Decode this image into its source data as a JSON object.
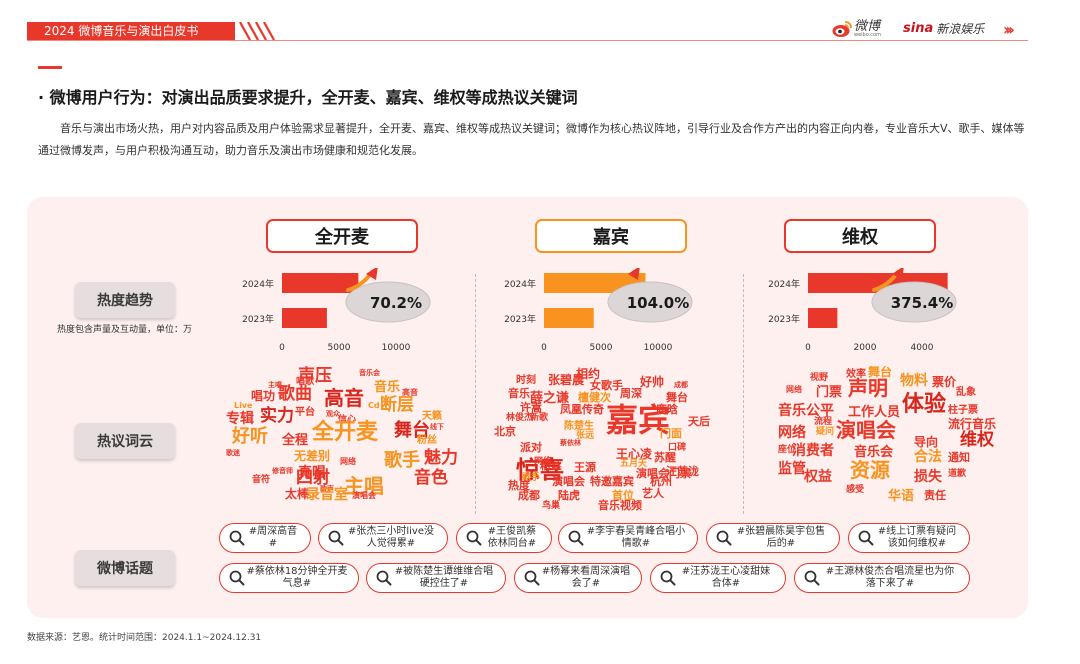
{
  "header": {
    "report_title": "2024 微博音乐与演出白皮书",
    "weibo_logo_text": "微博",
    "weibo_logo_sub": "weibo.com",
    "sina_logo_mark": "sina",
    "sina_logo_text": "新浪娱乐",
    "nav_chevrons": "›››"
  },
  "section": {
    "title": "· 微博用户行为：对演出品质要求提升，全开麦、嘉宾、维权等成热议关键词",
    "paragraph": "音乐与演出市场火热，用户对内容品质及用户体验需求显著提升，全开麦、嘉宾、维权等成热议关键词；微博作为核心热议阵地，引导行业及合作方产出的内容正向内卷，专业音乐大V、歌手、媒体等通过微博发声，与用户积极沟通互动，助力音乐及演出市场健康和规范化发展。"
  },
  "row_labels": {
    "trend": "热度趋势",
    "trend_note": "热度包含声量及互动量，单位：万",
    "words": "热议词云",
    "topics": "微博话题"
  },
  "keywords": [
    {
      "name": "全开麦",
      "growth": "70.2%"
    },
    {
      "name": "嘉宾",
      "growth": "104.0%"
    },
    {
      "name": "维权",
      "growth": "375.4%"
    }
  ],
  "colors": {
    "red": "#e8382b",
    "orange": "#f7931e",
    "panel": "#fdf0ee",
    "label_bg": "#e6dede"
  },
  "chart_data": [
    {
      "type": "bar",
      "title": "全开麦",
      "orientation": "horizontal",
      "categories": [
        "2024年",
        "2023年"
      ],
      "values": [
        6700,
        3940
      ],
      "xlim": [
        0,
        10000
      ],
      "xticks": [
        0,
        5000,
        10000
      ],
      "annotation": "70.2%"
    },
    {
      "type": "bar",
      "title": "嘉宾",
      "orientation": "horizontal",
      "categories": [
        "2024年",
        "2023年"
      ],
      "values": [
        8900,
        4360
      ],
      "xlim": [
        0,
        10000
      ],
      "xticks": [
        0,
        5000,
        10000
      ],
      "annotation": "104.0%"
    },
    {
      "type": "bar",
      "title": "维权",
      "orientation": "horizontal",
      "categories": [
        "2024年",
        "2023年"
      ],
      "values": [
        4900,
        1030
      ],
      "xlim": [
        0,
        4000
      ],
      "xticks": [
        0,
        2000,
        4000
      ],
      "annotation": "375.4%"
    }
  ],
  "word_clouds": [
    [
      {
        "t": "声压",
        "s": 17,
        "c": "#e8382b"
      },
      {
        "t": "唱歌",
        "s": 9,
        "c": "#e8382b"
      },
      {
        "t": "音乐会",
        "s": 7,
        "c": "#e8382b"
      },
      {
        "t": "主唱",
        "s": 7,
        "c": "#e8382b"
      },
      {
        "t": "歌曲",
        "s": 17,
        "c": "#e8382b"
      },
      {
        "t": "高音",
        "s": 20,
        "c": "#d9261c"
      },
      {
        "t": "音乐",
        "s": 13,
        "c": "#f7931e"
      },
      {
        "t": "唱功",
        "s": 12,
        "c": "#e8382b"
      },
      {
        "t": "高音",
        "s": 8,
        "c": "#e8382b"
      },
      {
        "t": "Live",
        "s": 8,
        "c": "#f7931e"
      },
      {
        "t": "平台",
        "s": 10,
        "c": "#e8382b"
      },
      {
        "t": "观众",
        "s": 7,
        "c": "#e8382b"
      },
      {
        "t": "信心",
        "s": 9,
        "c": "#e8382b"
      },
      {
        "t": "Cd",
        "s": 8,
        "c": "#f7931e"
      },
      {
        "t": "断层",
        "s": 17,
        "c": "#f7931e"
      },
      {
        "t": "专辑",
        "s": 14,
        "c": "#e8382b"
      },
      {
        "t": "实力",
        "s": 17,
        "c": "#d9261c"
      },
      {
        "t": "全开麦",
        "s": 22,
        "c": "#f7931e"
      },
      {
        "t": "天籁",
        "s": 10,
        "c": "#f7931e"
      },
      {
        "t": "线下",
        "s": 7,
        "c": "#e8382b"
      },
      {
        "t": "舞台",
        "s": 18,
        "c": "#d9261c"
      },
      {
        "t": "好听",
        "s": 18,
        "c": "#f7931e"
      },
      {
        "t": "全程",
        "s": 13,
        "c": "#e8382b"
      },
      {
        "t": "粉丝",
        "s": 10,
        "c": "#f7931e"
      },
      {
        "t": "歌迷",
        "s": 7,
        "c": "#e8382b"
      },
      {
        "t": "无差别",
        "s": 12,
        "c": "#f7931e"
      },
      {
        "t": "网络",
        "s": 8,
        "c": "#e8382b"
      },
      {
        "t": "歌手",
        "s": 18,
        "c": "#f7931e"
      },
      {
        "t": "魅力",
        "s": 17,
        "c": "#e8382b"
      },
      {
        "t": "四射",
        "s": 17,
        "c": "#e8382b"
      },
      {
        "t": "修音师",
        "s": 7,
        "c": "#e8382b"
      },
      {
        "t": "音符",
        "s": 9,
        "c": "#e8382b"
      },
      {
        "t": "真唱",
        "s": 14,
        "c": "#e8382b"
      },
      {
        "t": "主唱",
        "s": 20,
        "c": "#f7931e"
      },
      {
        "t": "音色",
        "s": 17,
        "c": "#e8382b"
      },
      {
        "t": "太棒",
        "s": 12,
        "c": "#e8382b"
      },
      {
        "t": "歌声",
        "s": 7,
        "c": "#e8382b"
      },
      {
        "t": "录音室",
        "s": 14,
        "c": "#f7931e"
      },
      {
        "t": "演唱会",
        "s": 8,
        "c": "#e8382b"
      }
    ],
    [
      {
        "t": "相约",
        "s": 12,
        "c": "#e8382b"
      },
      {
        "t": "时刻",
        "s": 10,
        "c": "#e8382b"
      },
      {
        "t": "张碧晨",
        "s": 12,
        "c": "#e8382b"
      },
      {
        "t": "女歌手",
        "s": 11,
        "c": "#e8382b"
      },
      {
        "t": "好帅",
        "s": 12,
        "c": "#e8382b"
      },
      {
        "t": "成都",
        "s": 7,
        "c": "#e8382b"
      },
      {
        "t": "音乐",
        "s": 11,
        "c": "#e8382b"
      },
      {
        "t": "薛之谦",
        "s": 13,
        "c": "#e8382b"
      },
      {
        "t": "檀健次",
        "s": 11,
        "c": "#f7931e"
      },
      {
        "t": "周深",
        "s": 11,
        "c": "#e8382b"
      },
      {
        "t": "舞台",
        "s": 11,
        "c": "#e8382b"
      },
      {
        "t": "许嵩",
        "s": 11,
        "c": "#e8382b"
      },
      {
        "t": "凤凰传奇",
        "s": 11,
        "c": "#e8382b"
      },
      {
        "t": "鹿晗",
        "s": 11,
        "c": "#e8382b"
      },
      {
        "t": "林俊杰",
        "s": 9,
        "c": "#e8382b"
      },
      {
        "t": "新歌",
        "s": 9,
        "c": "#e8382b"
      },
      {
        "t": "嘉宾",
        "s": 32,
        "c": "#e8382b"
      },
      {
        "t": "天后",
        "s": 11,
        "c": "#e8382b"
      },
      {
        "t": "北京",
        "s": 11,
        "c": "#e8382b"
      },
      {
        "t": "陈楚生",
        "s": 10,
        "c": "#f7931e"
      },
      {
        "t": "门面",
        "s": 11,
        "c": "#f7931e"
      },
      {
        "t": "张远",
        "s": 9,
        "c": "#f7931e"
      },
      {
        "t": "口碑",
        "s": 9,
        "c": "#e8382b"
      },
      {
        "t": "蔡依林",
        "s": 7,
        "c": "#e8382b"
      },
      {
        "t": "派对",
        "s": 11,
        "c": "#e8382b"
      },
      {
        "t": "惊喜",
        "s": 24,
        "c": "#d9261c"
      },
      {
        "t": "网络",
        "s": 9,
        "c": "#e8382b"
      },
      {
        "t": "王心凌",
        "s": 12,
        "c": "#e8382b"
      },
      {
        "t": "苏醒",
        "s": 11,
        "c": "#e8382b"
      },
      {
        "t": "歌手",
        "s": 9,
        "c": "#f7931e"
      },
      {
        "t": "粉丝",
        "s": 11,
        "c": "#e8382b"
      },
      {
        "t": "五月天",
        "s": 9,
        "c": "#f7931e"
      },
      {
        "t": "王源",
        "s": 11,
        "c": "#e8382b"
      },
      {
        "t": "演唱会门票",
        "s": 11,
        "c": "#e8382b"
      },
      {
        "t": "汪苏泷",
        "s": 11,
        "c": "#e8382b"
      },
      {
        "t": "热度",
        "s": 11,
        "c": "#e8382b"
      },
      {
        "t": "演唱会",
        "s": 11,
        "c": "#e8382b"
      },
      {
        "t": "特邀嘉宾",
        "s": 11,
        "c": "#e8382b"
      },
      {
        "t": "杭州",
        "s": 11,
        "c": "#e8382b"
      },
      {
        "t": "成都",
        "s": 11,
        "c": "#e8382b"
      },
      {
        "t": "陆虎",
        "s": 11,
        "c": "#e8382b"
      },
      {
        "t": "首位",
        "s": 11,
        "c": "#f7931e"
      },
      {
        "t": "艺人",
        "s": 11,
        "c": "#e8382b"
      },
      {
        "t": "音乐视频",
        "s": 11,
        "c": "#e8382b"
      },
      {
        "t": "鸟巢",
        "s": 9,
        "c": "#e8382b"
      }
    ],
    [
      {
        "t": "效率",
        "s": 10,
        "c": "#e8382b"
      },
      {
        "t": "舞台",
        "s": 12,
        "c": "#f7931e"
      },
      {
        "t": "视野",
        "s": 9,
        "c": "#e8382b"
      },
      {
        "t": "物料",
        "s": 14,
        "c": "#f7931e"
      },
      {
        "t": "票价",
        "s": 12,
        "c": "#e8382b"
      },
      {
        "t": "网络",
        "s": 8,
        "c": "#e8382b"
      },
      {
        "t": "门票",
        "s": 13,
        "c": "#e8382b"
      },
      {
        "t": "声明",
        "s": 20,
        "c": "#e8382b"
      },
      {
        "t": "乱象",
        "s": 10,
        "c": "#e8382b"
      },
      {
        "t": "体验",
        "s": 22,
        "c": "#d9261c"
      },
      {
        "t": "柱子票",
        "s": 10,
        "c": "#e8382b"
      },
      {
        "t": "音乐公平",
        "s": 14,
        "c": "#e8382b"
      },
      {
        "t": "工作人员",
        "s": 13,
        "c": "#e8382b"
      },
      {
        "t": "流程",
        "s": 9,
        "c": "#e8382b"
      },
      {
        "t": "流行音乐",
        "s": 12,
        "c": "#e8382b"
      },
      {
        "t": "网络",
        "s": 14,
        "c": "#e8382b"
      },
      {
        "t": "疑问",
        "s": 9,
        "c": "#f7931e"
      },
      {
        "t": "演唱会",
        "s": 20,
        "c": "#e8382b"
      },
      {
        "t": "导向",
        "s": 12,
        "c": "#e8382b"
      },
      {
        "t": "维权",
        "s": 17,
        "c": "#d9261c"
      },
      {
        "t": "座位",
        "s": 9,
        "c": "#e8382b"
      },
      {
        "t": "消费者",
        "s": 14,
        "c": "#e8382b"
      },
      {
        "t": "音乐会",
        "s": 13,
        "c": "#e8382b"
      },
      {
        "t": "合法",
        "s": 14,
        "c": "#f7931e"
      },
      {
        "t": "通知",
        "s": 11,
        "c": "#e8382b"
      },
      {
        "t": "监管",
        "s": 14,
        "c": "#e8382b"
      },
      {
        "t": "权益",
        "s": 14,
        "c": "#e8382b"
      },
      {
        "t": "资源",
        "s": 20,
        "c": "#f7931e"
      },
      {
        "t": "损失",
        "s": 14,
        "c": "#e8382b"
      },
      {
        "t": "道歉",
        "s": 9,
        "c": "#e8382b"
      },
      {
        "t": "感受",
        "s": 9,
        "c": "#e8382b"
      },
      {
        "t": "华语",
        "s": 13,
        "c": "#f7931e"
      },
      {
        "t": "责任",
        "s": 11,
        "c": "#e8382b"
      }
    ]
  ],
  "topics_row1": [
    "#周深高音#",
    "#张杰三小时live没人觉得累#",
    "#王俊凯蔡依林同台#",
    "#李宇春吴青峰合唱小情歌#",
    "#张碧晨陈昊宇包售后的#",
    "#线上订票有疑问该如何维权#"
  ],
  "topics_row2": [
    "#蔡依林18分钟全开麦气息#",
    "#被陈楚生谭维维合唱硬控住了#",
    "#杨幂来看周深演唱会了#",
    "#汪苏泷王心凌甜妹合体#",
    "#王源林俊杰合唱流星也为你落下来了#"
  ],
  "footer": "数据来源：艺恩。统计时间范围：2024.1.1~2024.12.31"
}
